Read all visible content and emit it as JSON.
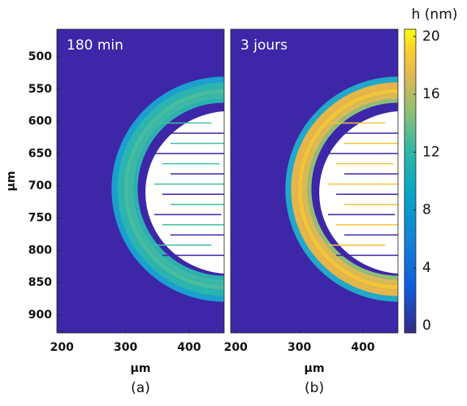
{
  "chart_data": [
    {
      "type": "heatmap",
      "panel_text": "180 min",
      "caption": "(a)",
      "xlabel": "µm",
      "ylabel": "µm",
      "xlim": [
        192,
        455
      ],
      "xticks": [
        200,
        300,
        400
      ],
      "ylim": [
        457,
        928
      ],
      "yticks": [
        500,
        550,
        600,
        650,
        700,
        750,
        800,
        850,
        900
      ]
    },
    {
      "type": "heatmap",
      "panel_text": "3 jours",
      "caption": "(b)",
      "xlabel": "µm",
      "xlim": [
        192,
        455
      ],
      "xticks": [
        200,
        300,
        400
      ],
      "ylim": [
        457,
        928
      ],
      "colorbar": {
        "label": "h (nm)",
        "lim": [
          -0.5,
          20.5
        ],
        "ticks": [
          0,
          4,
          8,
          12,
          16,
          20
        ]
      }
    }
  ]
}
